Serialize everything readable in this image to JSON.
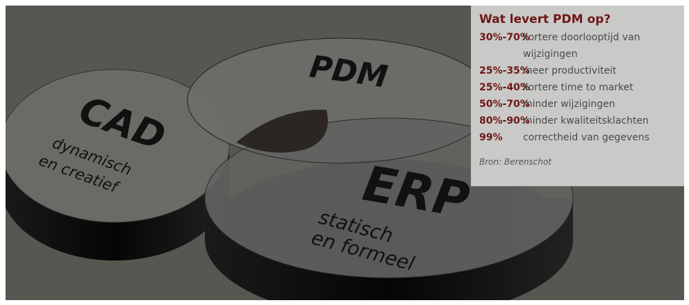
{
  "diagram": {
    "circles": [
      {
        "label": "CAD",
        "sublabel": [
          "dynamisch",
          "en creatief"
        ]
      },
      {
        "label": "PDM"
      },
      {
        "label": "ERP",
        "sublabel": [
          "statisch",
          "en formeel"
        ]
      }
    ]
  },
  "infobox": {
    "title": "Wat levert PDM op?",
    "items": [
      {
        "range": "30%-70%",
        "text": "kortere doorlooptijd van wijzigingen"
      },
      {
        "range": "25%-35%",
        "text": "meer productiviteit"
      },
      {
        "range": "25%-40%",
        "text": "kortere time to market"
      },
      {
        "range": "50%-70%",
        "text": "minder wijzigingen"
      },
      {
        "range": "80%-90%",
        "text": "minder kwaliteitsklachten"
      },
      {
        "range": "99%",
        "text": "correctheid van gegevens"
      }
    ],
    "source": "Bron: Berenschot"
  }
}
